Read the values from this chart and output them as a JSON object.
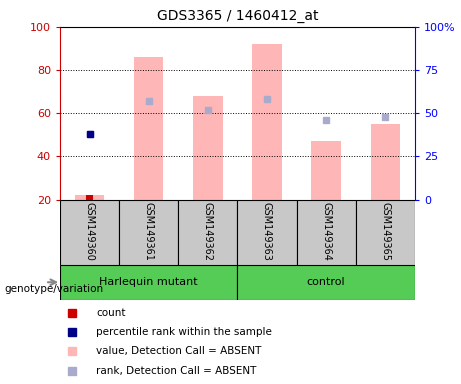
{
  "title": "GDS3365 / 1460412_at",
  "samples": [
    "GSM149360",
    "GSM149361",
    "GSM149362",
    "GSM149363",
    "GSM149364",
    "GSM149365"
  ],
  "pink_bar_values": [
    22,
    86,
    68,
    92,
    47,
    55
  ],
  "blue_sq_values": [
    38,
    57,
    52,
    58,
    46,
    48
  ],
  "red_bar_sample": 0,
  "red_bar_value": 22,
  "blue_dot_sample": 0,
  "blue_dot_value": 38,
  "ylim_left": [
    20,
    100
  ],
  "ylim_right": [
    0,
    100
  ],
  "yticks_left": [
    20,
    40,
    60,
    80,
    100
  ],
  "ytick_labels_left": [
    "20",
    "40",
    "60",
    "80",
    "100"
  ],
  "yticks_right_pct": [
    0,
    25,
    50,
    75,
    100
  ],
  "ytick_labels_right": [
    "0",
    "25",
    "50",
    "75",
    "100%"
  ],
  "pink_color": "#FFB6B6",
  "blue_sq_color": "#AAAACC",
  "red_color": "#CC0000",
  "blue_dot_color": "#000088",
  "bg_color": "#C8C8C8",
  "green_color": "#55CC55",
  "group_split": 2.5,
  "group_labels": [
    "Harlequin mutant",
    "control"
  ],
  "legend_items": [
    {
      "label": "count",
      "color": "#CC0000"
    },
    {
      "label": "percentile rank within the sample",
      "color": "#000088"
    },
    {
      "label": "value, Detection Call = ABSENT",
      "color": "#FFB6B6"
    },
    {
      "label": "rank, Detection Call = ABSENT",
      "color": "#AAAACC"
    }
  ],
  "genotype_label": "genotype/variation"
}
